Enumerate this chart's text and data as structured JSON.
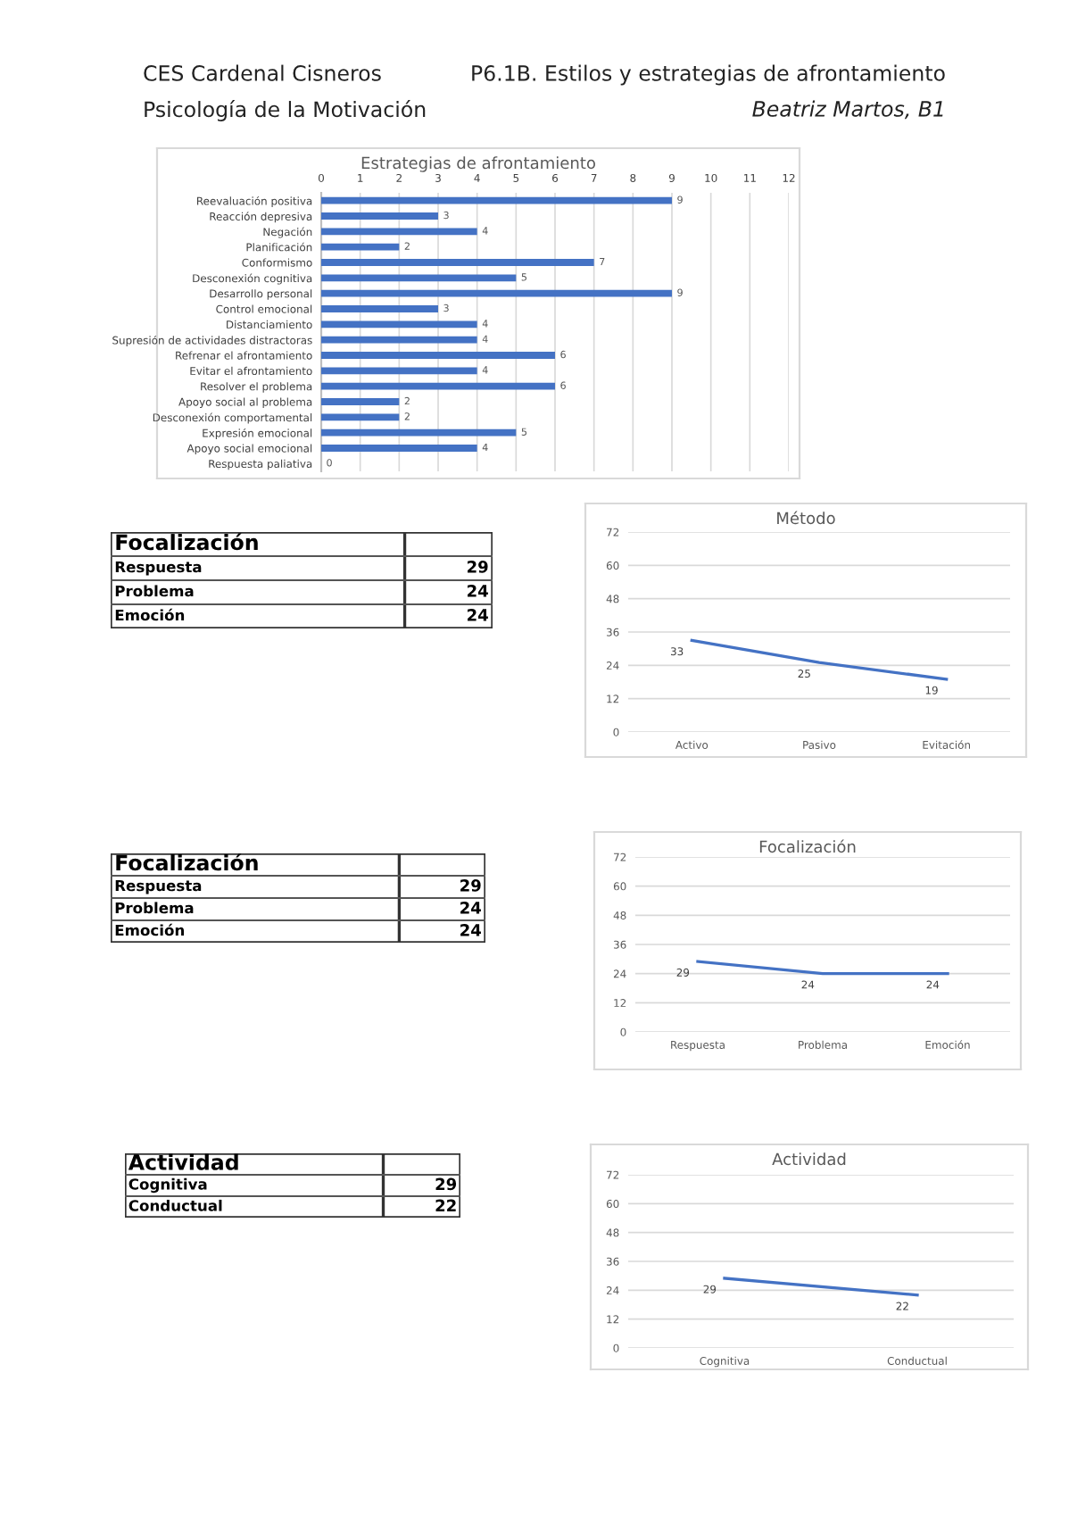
{
  "chart_data": [
    {
      "type": "other",
      "annotations": [
        "CES Cardenal Cisneros",
        "P6.1B. Estilos y estrategias de afrontamiento",
        "Psicología de la Motivación",
        "Beatriz Martos, B1"
      ]
    },
    {
      "type": "bar",
      "orientation": "horizontal",
      "title": "Estrategias de afrontamiento",
      "categories": [
        "Reevaluación positiva",
        "Reacción depresiva",
        "Negación",
        "Planificación",
        "Conformismo",
        "Desconexión cognitiva",
        "Desarrollo personal",
        "Control emocional",
        "Distanciamiento",
        "Supresión de actividades distractoras",
        "Refrenar el afrontamiento",
        "Evitar el afrontamiento",
        "Resolver el problema",
        "Apoyo social al problema",
        "Desconexión comportamental",
        "Expresión emocional",
        "Apoyo social emocional",
        "Respuesta paliativa"
      ],
      "values": [
        9,
        3,
        4,
        2,
        7,
        5,
        9,
        3,
        4,
        4,
        6,
        4,
        6,
        2,
        2,
        5,
        4,
        0
      ],
      "color": "#4472c4",
      "xlim": [
        0,
        12
      ],
      "xticks": [
        0,
        1,
        2,
        3,
        4,
        5,
        6,
        7,
        8,
        9,
        10,
        11,
        12
      ],
      "grid": "x",
      "data_labels": true
    },
    {
      "type": "other",
      "title": "Focalización",
      "categories": [
        "Respuesta",
        "Problema",
        "Emoción"
      ],
      "values": [
        29,
        24,
        24
      ],
      "data_labels": true
    },
    {
      "type": "line",
      "title": "Método",
      "categories": [
        "Activo",
        "Pasivo",
        "Evitación"
      ],
      "values": [
        33,
        25,
        19
      ],
      "color": "#4472c4",
      "ylim": [
        0,
        72
      ],
      "yticks": [
        0,
        12,
        24,
        36,
        48,
        60,
        72
      ],
      "grid": "y",
      "data_labels": true
    },
    {
      "type": "other",
      "title": "Focalización",
      "categories": [
        "Respuesta",
        "Problema",
        "Emoción"
      ],
      "values": [
        29,
        24,
        24
      ],
      "data_labels": true
    },
    {
      "type": "line",
      "title": "Focalización",
      "categories": [
        "Respuesta",
        "Problema",
        "Emoción"
      ],
      "values": [
        29,
        24,
        24
      ],
      "color": "#4472c4",
      "ylim": [
        0,
        72
      ],
      "yticks": [
        0,
        12,
        24,
        36,
        48,
        60,
        72
      ],
      "grid": "y",
      "data_labels": true
    },
    {
      "type": "other",
      "title": "Actividad",
      "categories": [
        "Cognitiva",
        "Conductual"
      ],
      "values": [
        29,
        22
      ],
      "data_labels": true
    },
    {
      "type": "line",
      "title": "Actividad",
      "categories": [
        "Cognitiva",
        "Conductual"
      ],
      "values": [
        29,
        22
      ],
      "color": "#4472c4",
      "ylim": [
        0,
        72
      ],
      "yticks": [
        0,
        12,
        24,
        36,
        48,
        60,
        72
      ],
      "grid": "y",
      "data_labels": true
    }
  ]
}
